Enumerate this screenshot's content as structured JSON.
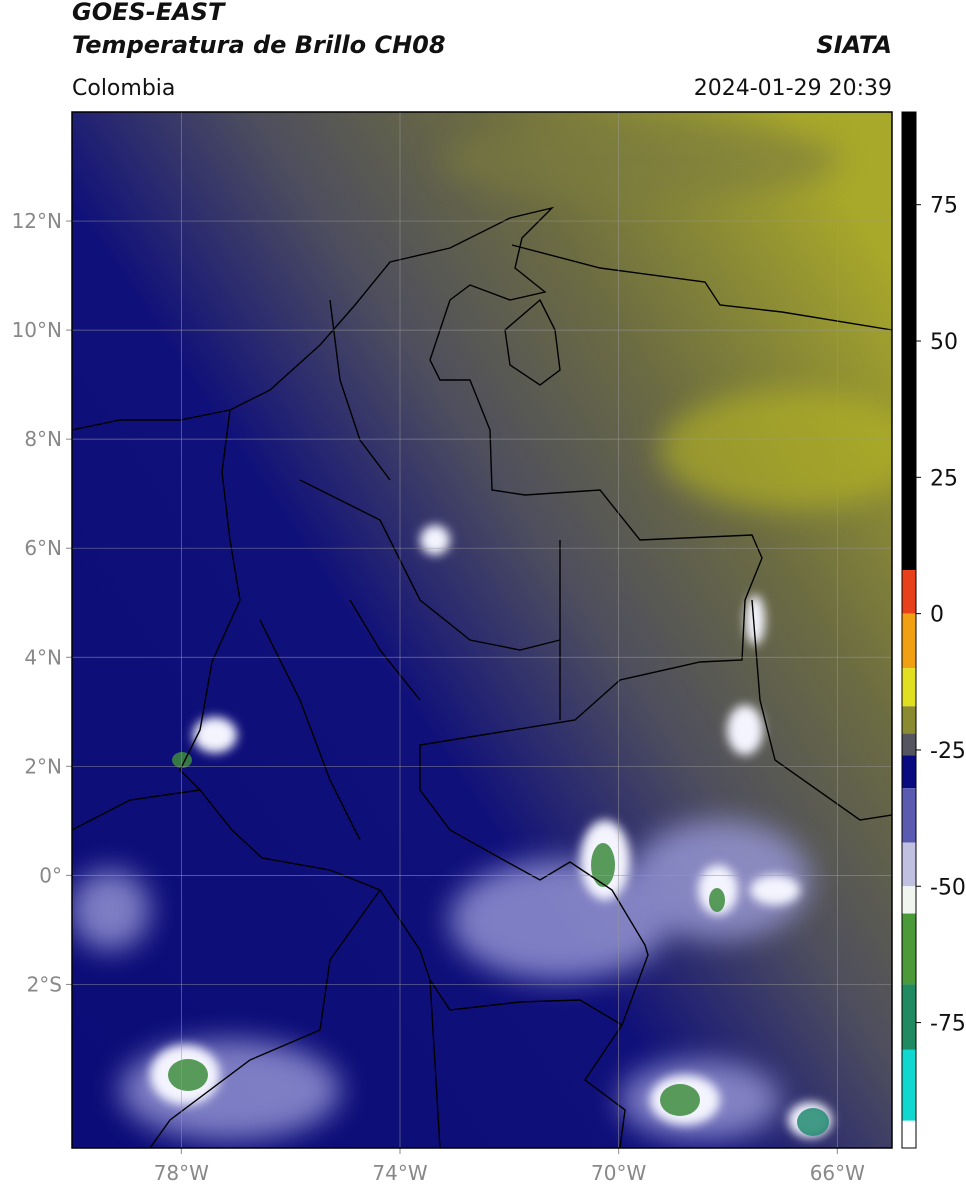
{
  "header": {
    "title": "GOES-EAST",
    "subtitle": "Temperatura de Brillo CH08",
    "region": "Colombia",
    "source": "SIATA",
    "datetime": "2024-01-29 20:39"
  },
  "map": {
    "xlim": [
      -80,
      -65
    ],
    "ylim": [
      -5,
      14
    ],
    "xticks": [
      {
        "value": -78,
        "label": "78°W"
      },
      {
        "value": -74,
        "label": "74°W"
      },
      {
        "value": -70,
        "label": "70°W"
      },
      {
        "value": -66,
        "label": "66°W"
      }
    ],
    "yticks": [
      {
        "value": 12,
        "label": "12°N"
      },
      {
        "value": 10,
        "label": "10°N"
      },
      {
        "value": 8,
        "label": "8°N"
      },
      {
        "value": 6,
        "label": "6°N"
      },
      {
        "value": 4,
        "label": "4°N"
      },
      {
        "value": 2,
        "label": "2°N"
      },
      {
        "value": 0,
        "label": "0°"
      },
      {
        "value": -2,
        "label": "2°S"
      }
    ],
    "grid": true
  },
  "colorbar": {
    "lim": [
      -98,
      92
    ],
    "ticks": [
      75,
      50,
      25,
      0,
      -25,
      -50,
      -75
    ],
    "segments": [
      {
        "from": 8,
        "to": 92,
        "color": "#000000"
      },
      {
        "from": 0,
        "to": 8,
        "color": "#e8401a"
      },
      {
        "from": -10,
        "to": 0,
        "color": "#f0a010"
      },
      {
        "from": -17,
        "to": -10,
        "color": "#e0e020"
      },
      {
        "from": -22,
        "to": -17,
        "color": "#8a8a30"
      },
      {
        "from": -26,
        "to": -22,
        "color": "#555560"
      },
      {
        "from": -32,
        "to": -26,
        "color": "#0a0a80"
      },
      {
        "from": -42,
        "to": -32,
        "color": "#5a5ab0"
      },
      {
        "from": -50,
        "to": -42,
        "color": "#c0c0e0"
      },
      {
        "from": -55,
        "to": -50,
        "color": "#f0f5f0"
      },
      {
        "from": -68,
        "to": -55,
        "color": "#4a9a3a"
      },
      {
        "from": -80,
        "to": -68,
        "color": "#208a60"
      },
      {
        "from": -93,
        "to": -80,
        "color": "#10d8d0"
      },
      {
        "from": -98,
        "to": -93,
        "color": "#ffffff"
      }
    ]
  }
}
